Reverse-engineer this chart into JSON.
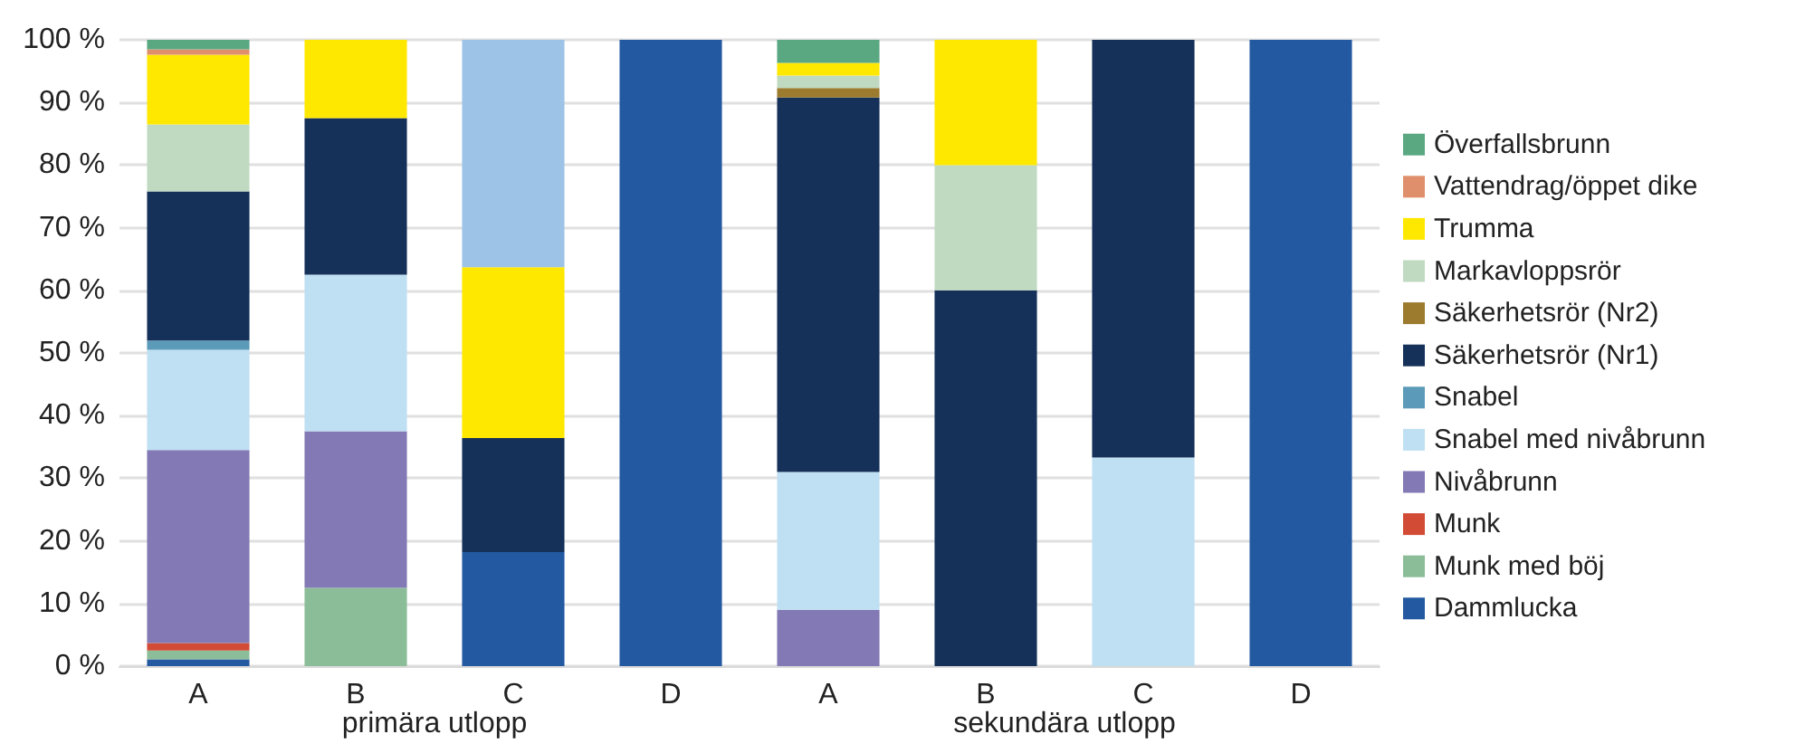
{
  "chart_data": {
    "type": "bar",
    "stacked": true,
    "categories": [
      "A",
      "B",
      "C",
      "D",
      "A",
      "B",
      "C",
      "D"
    ],
    "annotations": [
      "primära utlopp",
      "sekundära utlopp"
    ],
    "ylim": [
      0,
      100
    ],
    "yticks": [
      {
        "value": 0,
        "label": "0 %"
      },
      {
        "value": 10,
        "label": "10 %"
      },
      {
        "value": 20,
        "label": "20 %"
      },
      {
        "value": 30,
        "label": "30 %"
      },
      {
        "value": 40,
        "label": "40 %"
      },
      {
        "value": 50,
        "label": "50 %"
      },
      {
        "value": 60,
        "label": "60 %"
      },
      {
        "value": 70,
        "label": "70 %"
      },
      {
        "value": 80,
        "label": "80 %"
      },
      {
        "value": 90,
        "label": "90 %"
      },
      {
        "value": 100,
        "label": "100 %"
      }
    ],
    "grid": "y",
    "legend": "right",
    "series": [
      {
        "name": "Dammlucka",
        "color": "#2359a1",
        "values": [
          1.1,
          null,
          18.2,
          100,
          null,
          null,
          null,
          100
        ]
      },
      {
        "name": "Munk med böj",
        "color": "#8bbd98",
        "values": [
          1.4,
          12.5,
          null,
          null,
          null,
          null,
          null,
          null
        ]
      },
      {
        "name": "Munk",
        "color": "#d14b35",
        "values": [
          1.2,
          null,
          null,
          null,
          null,
          null,
          null,
          null
        ]
      },
      {
        "name": "Nivåbrunn",
        "color": "#8279b5",
        "values": [
          30.8,
          25,
          null,
          null,
          9,
          null,
          null,
          null
        ]
      },
      {
        "name": "Snabel med nivåbrunn",
        "color": "#bfdff3",
        "values": [
          16,
          25,
          null,
          null,
          22,
          null,
          33.3,
          null
        ]
      },
      {
        "name": "Snabel",
        "color": "#5b9ab8",
        "values": [
          1.5,
          null,
          null,
          null,
          null,
          null,
          null,
          null
        ]
      },
      {
        "name": "Säkerhetsrör (Nr1)",
        "color": "#15315a",
        "values": [
          23.8,
          25,
          18.2,
          null,
          59.8,
          60,
          66.7,
          null
        ]
      },
      {
        "name": "Säkerhetsrör (Nr2)",
        "color": "#9c7a2e",
        "values": [
          null,
          null,
          null,
          null,
          1.5,
          null,
          null,
          null
        ]
      },
      {
        "name": "Markavloppsrör",
        "color": "#c0dac2",
        "values": [
          10.7,
          null,
          null,
          null,
          2,
          20,
          null,
          null
        ]
      },
      {
        "name": "Trumma",
        "color": "#ffe800",
        "values": [
          11.1,
          12.5,
          27.3,
          null,
          2,
          20,
          null,
          null
        ]
      },
      {
        "name": "Vattendrag/öppet dike",
        "color": "#e08f6c",
        "values": [
          0.9,
          null,
          null,
          null,
          null,
          null,
          null,
          null
        ]
      },
      {
        "name": "Överfallsbrunn",
        "color": "#5aa882",
        "values": [
          1.5,
          null,
          null,
          null,
          3.7,
          null,
          null,
          null
        ]
      },
      {
        "color": "#9dc3e6",
        "values": [
          null,
          null,
          36.3,
          null,
          null,
          null,
          null,
          null
        ]
      }
    ]
  }
}
